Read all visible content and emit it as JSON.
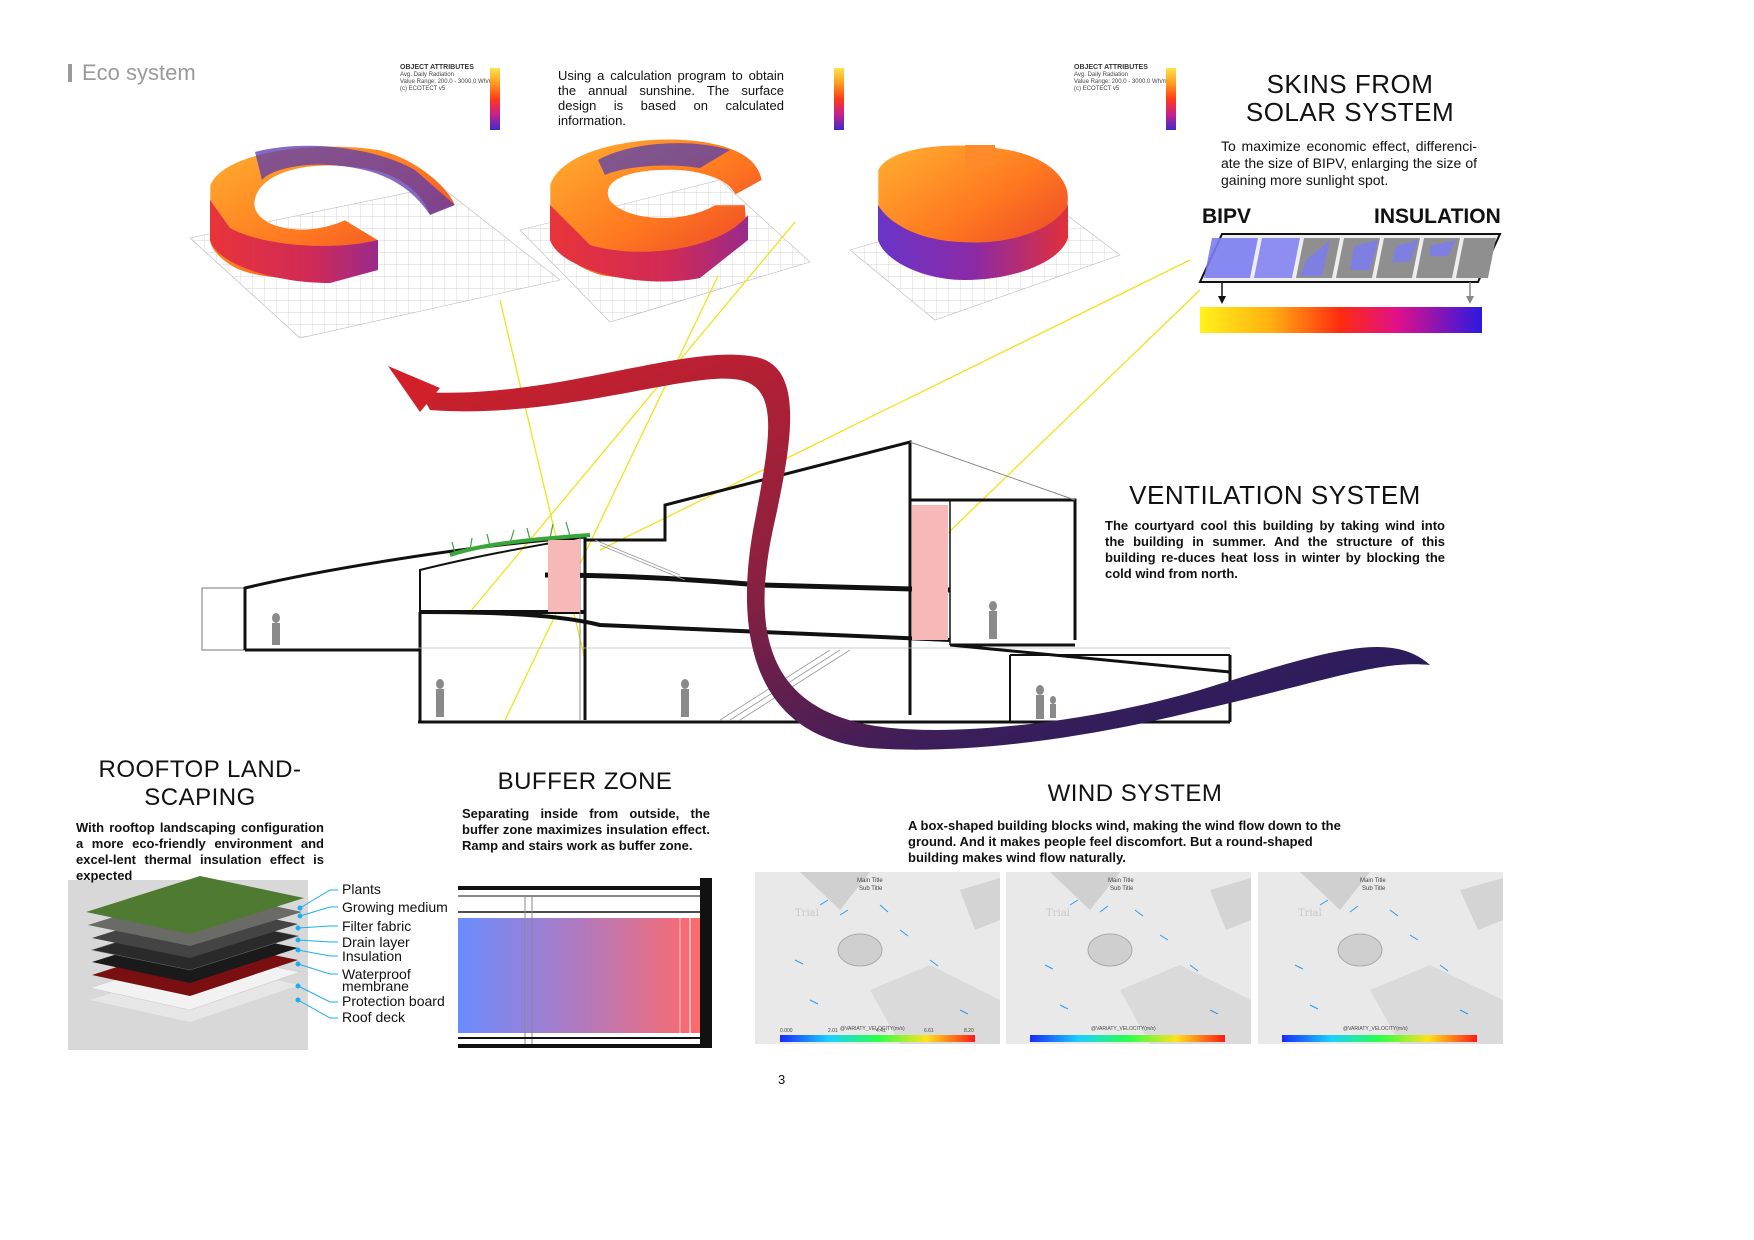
{
  "header": {
    "section_title": "Eco system"
  },
  "radiation_legends": [
    {
      "title": "OBJECT ATTRIBUTES",
      "subtitle": "Avg. Daily Radiation",
      "range": "Value Range: 200.0 - 3000.0 Wh/m2",
      "credit": "(c) ECOTECT v5"
    },
    {
      "title": "",
      "subtitle": "",
      "range": "",
      "credit": ""
    },
    {
      "title": "OBJECT ATTRIBUTES",
      "subtitle": "Avg. Daily Radiation",
      "range": "Value Range: 200.0 - 3000.0 Wh/m2",
      "credit": "(c) ECOTECT v5"
    }
  ],
  "sunshine_note": "Using a calculation program to obtain the annual sunshine. The surface design is based on calculated information.",
  "skins": {
    "title_line1": "SKINS FROM",
    "title_line2": "SOLAR SYSTEM",
    "text": "To maximize economic effect, differenci-ate the size of BIPV, enlarging the size of gaining more sunlight spot.",
    "label_left": "BIPV",
    "label_right": "INSULATION"
  },
  "ventilation": {
    "title": "VENTILATION SYSTEM",
    "text": "The courtyard cool this building by taking wind into the building in summer. And the structure of this building re-duces heat loss in winter by blocking the cold wind from north."
  },
  "rooftop": {
    "title_line1": "ROOFTOP LAND-",
    "title_line2": "SCAPING",
    "text": "With rooftop landscaping configuration a more eco-friendly environment and excel-lent thermal insulation effect is expected",
    "layers": [
      "Plants",
      "Growing medium",
      "Filter fabric",
      "Drain layer",
      "Insulation",
      "Waterproof",
      "membrane",
      "Protection board",
      "Roof deck"
    ]
  },
  "buffer": {
    "title": "BUFFER ZONE",
    "text": "Separating inside from outside, the buffer zone maximizes insulation effect. Ramp and stairs work as buffer zone."
  },
  "wind": {
    "title": "WIND SYSTEM",
    "text": "A box-shaped building blocks wind, making the wind flow down to the ground. And it makes people feel discomfort. But a round-shaped building makes wind flow naturally.",
    "panel_main_title": "Main Title",
    "panel_sub_title": "Sub Title",
    "panel_watermark": "Trial",
    "scale_label": "@VARIATY_VELOCITY(m/s)",
    "scale_ticks": [
      "0.000",
      "2.01",
      "4.41",
      "6.61",
      "8.20"
    ]
  },
  "colors": {
    "arrow_red": "#c8202a",
    "arrow_navy": "#1c1a5e",
    "bipv_blue": "#7b7cf0",
    "buffer_blue": "#6a8cff",
    "buffer_red": "#ff6a6a",
    "sunline": "#f2e21a",
    "grass": "#3aa63a"
  },
  "page_number": "3"
}
